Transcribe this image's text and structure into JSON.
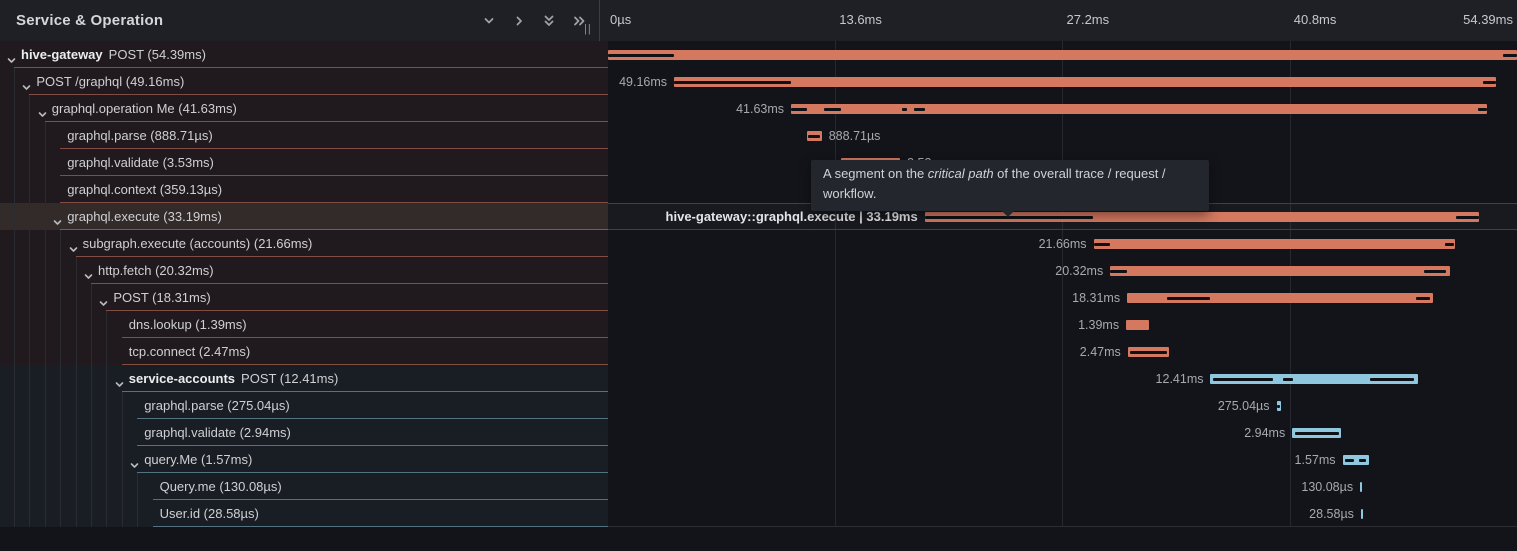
{
  "panel": {
    "title": "Service & Operation",
    "resize_handle": "||",
    "icons": [
      "chevron-down",
      "chevron-right",
      "chevrons-down",
      "chevrons-right"
    ]
  },
  "timeline": {
    "total_ms": 54.39,
    "ticks": [
      {
        "label": "0µs",
        "pct": 0
      },
      {
        "label": "13.6ms",
        "pct": 25
      },
      {
        "label": "27.2ms",
        "pct": 50
      },
      {
        "label": "40.8ms",
        "pct": 75
      },
      {
        "label": "54.39ms",
        "pct": 100
      }
    ]
  },
  "tooltip": {
    "lead": "A segment on the ",
    "emphasis": "critical path",
    "tail": " of the overall trace / request / workflow."
  },
  "colors": {
    "salmon": {
      "bar": "#d4785f",
      "line": "rgba(212,120,95,0.55)",
      "tint": "rgba(212,120,95,0.07)",
      "tint_hover": "rgba(222,160,130,0.16)"
    },
    "blue": {
      "bar": "#8fc7de",
      "line": "rgba(143,199,222,0.5)",
      "tint": "rgba(143,199,222,0.06)",
      "tint_hover": "rgba(143,199,222,0.16)"
    }
  },
  "spans": [
    {
      "service": "hive-gateway",
      "operation": "POST (54.39ms)",
      "depth": 0,
      "expandable": true,
      "color": "salmon",
      "start_ms": 0,
      "duration_ms": 54.39,
      "bar_label": "",
      "label_side": "none",
      "critical_path": [
        [
          0,
          0.073
        ],
        [
          0.985,
          1
        ]
      ]
    },
    {
      "service": "",
      "operation": "POST /graphql (49.16ms)",
      "depth": 1,
      "expandable": true,
      "color": "salmon",
      "start_ms": 3.95,
      "duration_ms": 49.16,
      "bar_label": "49.16ms",
      "label_side": "left",
      "critical_path": [
        [
          0,
          0.142
        ],
        [
          0.985,
          1
        ]
      ]
    },
    {
      "service": "",
      "operation": "graphql.operation Me (41.63ms)",
      "depth": 2,
      "expandable": true,
      "color": "salmon",
      "start_ms": 10.95,
      "duration_ms": 41.63,
      "bar_label": "41.63ms",
      "label_side": "left",
      "critical_path": [
        [
          0,
          0.023
        ],
        [
          0.047,
          0.072
        ],
        [
          0.16,
          0.167
        ],
        [
          0.177,
          0.192
        ],
        [
          0.988,
          1
        ]
      ]
    },
    {
      "service": "",
      "operation": "graphql.parse (888.71µs)",
      "depth": 3,
      "expandable": false,
      "color": "salmon",
      "start_ms": 11.9,
      "duration_ms": 0.889,
      "bar_label": "888.71µs",
      "label_side": "right",
      "critical_path": [
        [
          0.1,
          0.9
        ]
      ]
    },
    {
      "service": "",
      "operation": "graphql.validate (3.53ms)",
      "depth": 3,
      "expandable": false,
      "color": "salmon",
      "start_ms": 13.95,
      "duration_ms": 3.53,
      "bar_label": "3.53ms",
      "label_side": "right",
      "critical_path": [
        [
          0.04,
          0.96
        ]
      ]
    },
    {
      "service": "",
      "operation": "graphql.context (359.13µs)",
      "depth": 3,
      "expandable": false,
      "color": "salmon",
      "start_ms": 17.85,
      "duration_ms": 0.359,
      "bar_label": "359.13µs",
      "label_side": "right",
      "critical_path": [
        [
          0.15,
          0.85
        ]
      ]
    },
    {
      "service": "",
      "operation": "graphql.execute (33.19ms)",
      "depth": 3,
      "expandable": true,
      "color": "salmon",
      "start_ms": 18.95,
      "duration_ms": 33.19,
      "bar_label": "hive-gateway::graphql.execute | 33.19ms",
      "label_side": "left",
      "critical_path": [
        [
          0,
          0.303
        ],
        [
          0.957,
          1
        ]
      ],
      "hovered": true
    },
    {
      "service": "",
      "operation": "subgraph.execute (accounts) (21.66ms)",
      "depth": 4,
      "expandable": true,
      "color": "salmon",
      "start_ms": 29.05,
      "duration_ms": 21.66,
      "bar_label": "21.66ms",
      "label_side": "left",
      "critical_path": [
        [
          0,
          0.046
        ],
        [
          0.972,
          0.995
        ]
      ]
    },
    {
      "service": "",
      "operation": "http.fetch (20.32ms)",
      "depth": 5,
      "expandable": true,
      "color": "salmon",
      "start_ms": 30.05,
      "duration_ms": 20.32,
      "bar_label": "20.32ms",
      "label_side": "left",
      "critical_path": [
        [
          0,
          0.05
        ],
        [
          0.925,
          0.99
        ]
      ]
    },
    {
      "service": "",
      "operation": "POST (18.31ms)",
      "depth": 6,
      "expandable": true,
      "color": "salmon",
      "start_ms": 31.06,
      "duration_ms": 18.31,
      "bar_label": "18.31ms",
      "label_side": "left",
      "critical_path": [
        [
          0.13,
          0.27
        ],
        [
          0.945,
          0.99
        ]
      ]
    },
    {
      "service": "",
      "operation": "dns.lookup (1.39ms)",
      "depth": 7,
      "expandable": false,
      "color": "salmon",
      "start_ms": 31.0,
      "duration_ms": 1.39,
      "bar_label": "1.39ms",
      "label_side": "left",
      "critical_path": []
    },
    {
      "service": "",
      "operation": "tcp.connect (2.47ms)",
      "depth": 7,
      "expandable": false,
      "color": "salmon",
      "start_ms": 31.1,
      "duration_ms": 2.47,
      "bar_label": "2.47ms",
      "label_side": "left",
      "critical_path": [
        [
          0.06,
          0.94
        ]
      ]
    },
    {
      "service": "service-accounts",
      "operation": "POST (12.41ms)",
      "depth": 7,
      "expandable": true,
      "color": "blue",
      "start_ms": 36.05,
      "duration_ms": 12.41,
      "bar_label": "12.41ms",
      "label_side": "left",
      "critical_path": [
        [
          0.01,
          0.3
        ],
        [
          0.35,
          0.4
        ],
        [
          0.77,
          0.98
        ]
      ]
    },
    {
      "service": "",
      "operation": "graphql.parse (275.04µs)",
      "depth": 8,
      "expandable": false,
      "color": "blue",
      "start_ms": 40.0,
      "duration_ms": 0.275,
      "bar_label": "275.04µs",
      "label_side": "left",
      "critical_path": [
        [
          0.2,
          0.8
        ]
      ]
    },
    {
      "service": "",
      "operation": "graphql.validate (2.94ms)",
      "depth": 8,
      "expandable": false,
      "color": "blue",
      "start_ms": 40.94,
      "duration_ms": 2.94,
      "bar_label": "2.94ms",
      "label_side": "left",
      "critical_path": [
        [
          0.05,
          0.95
        ]
      ]
    },
    {
      "service": "",
      "operation": "query.Me (1.57ms)",
      "depth": 8,
      "expandable": true,
      "color": "blue",
      "start_ms": 43.95,
      "duration_ms": 1.57,
      "bar_label": "1.57ms",
      "label_side": "left",
      "critical_path": [
        [
          0.08,
          0.45
        ],
        [
          0.62,
          0.9
        ]
      ]
    },
    {
      "service": "",
      "operation": "Query.me (130.08µs)",
      "depth": 9,
      "expandable": false,
      "color": "blue",
      "start_ms": 45.0,
      "duration_ms": 0.13,
      "bar_label": "130.08µs",
      "label_side": "left",
      "critical_path": []
    },
    {
      "service": "",
      "operation": "User.id (28.58µs)",
      "depth": 9,
      "expandable": false,
      "color": "blue",
      "start_ms": 45.05,
      "duration_ms": 0.0286,
      "bar_label": "28.58µs",
      "label_side": "left",
      "critical_path": []
    }
  ]
}
